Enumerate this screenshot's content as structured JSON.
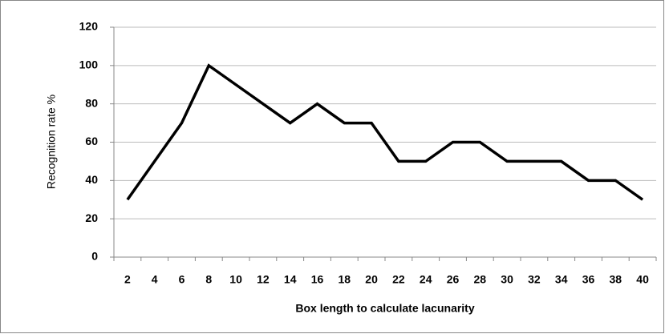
{
  "chart_data": {
    "type": "line",
    "y_label": "Recognition rate %",
    "x_label": "Box length to calculate lacunarity",
    "categories": [
      "2",
      "4",
      "6",
      "8",
      "10",
      "12",
      "14",
      "16",
      "18",
      "20",
      "22",
      "24",
      "26",
      "28",
      "30",
      "32",
      "34",
      "36",
      "38",
      "40"
    ],
    "values": [
      30,
      50,
      70,
      100,
      90,
      80,
      70,
      80,
      70,
      70,
      50,
      50,
      60,
      60,
      50,
      50,
      50,
      40,
      40,
      30
    ],
    "color": "#000000",
    "ylim": [
      0,
      120
    ],
    "yticks": [
      0,
      20,
      40,
      60,
      80,
      100,
      120
    ],
    "grid": true
  }
}
